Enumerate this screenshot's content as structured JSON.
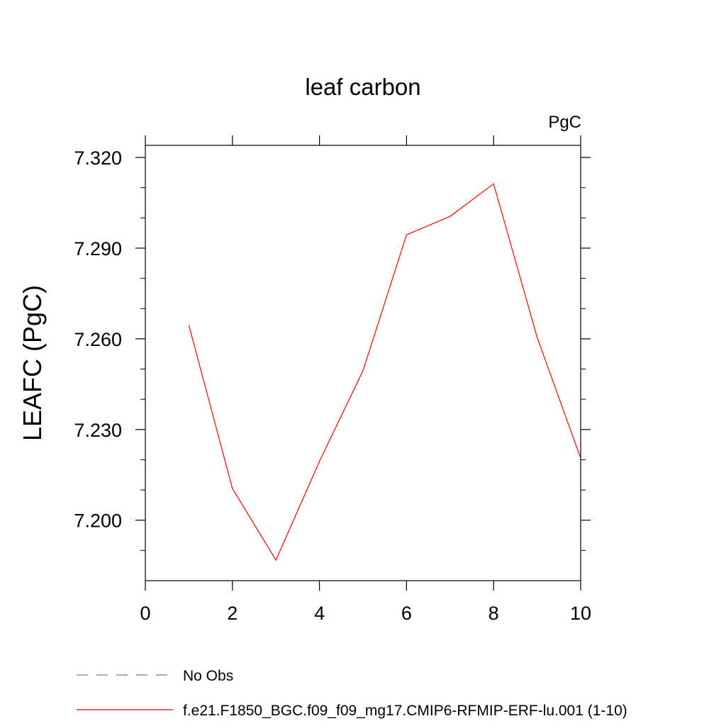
{
  "chart_data": {
    "type": "line",
    "title": "leaf carbon",
    "units_label": "PgC",
    "ylabel": "LEAFC  (PgC)",
    "xlabel": "",
    "xlim": [
      0,
      10
    ],
    "ylim": [
      7.18,
      7.324
    ],
    "x_ticks": [
      0,
      2,
      4,
      6,
      8,
      10
    ],
    "x_tick_labels": [
      "0",
      "2",
      "4",
      "6",
      "8",
      "10"
    ],
    "y_ticks": [
      7.2,
      7.23,
      7.26,
      7.29,
      7.32
    ],
    "y_tick_labels": [
      "7.200",
      "7.230",
      "7.260",
      "7.290",
      "7.320"
    ],
    "grid": false,
    "legend_position": "bottom",
    "series": [
      {
        "name": "No Obs",
        "color": "#7a6fa8",
        "dash": true,
        "x": [],
        "values": []
      },
      {
        "name": "f.e21.F1850_BGC.f09_f09_mg17.CMIP6-RFMIP-ERF-lu.001 (1-10)",
        "color": "#ff0000",
        "dash": false,
        "x": [
          1,
          2,
          3,
          4,
          5,
          6,
          7,
          8,
          9,
          10
        ],
        "values": [
          7.2645,
          7.2105,
          7.1868,
          7.2195,
          7.2495,
          7.2944,
          7.3005,
          7.3113,
          7.2605,
          7.2205
        ]
      }
    ]
  }
}
